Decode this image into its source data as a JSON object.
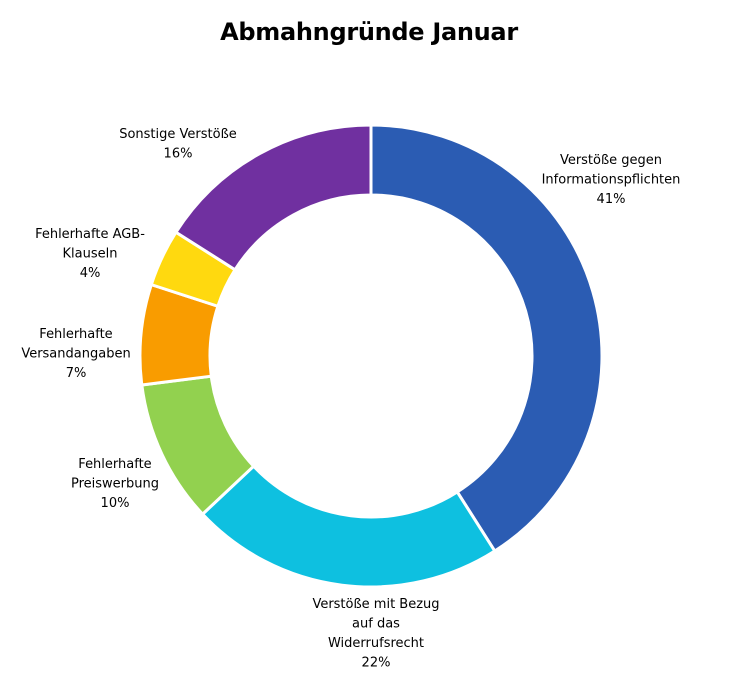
{
  "chart_data": {
    "type": "pie",
    "variant": "donut",
    "title": "Abmahngründe Januar",
    "slices": [
      {
        "lines": [
          "Verstöße gegen",
          "Informationspflichten"
        ],
        "value": 41,
        "value_label": "41%",
        "color": "#2b5cb3"
      },
      {
        "lines": [
          "Verstöße mit Bezug",
          "auf das",
          "Widerrufsrecht"
        ],
        "value": 22,
        "value_label": "22%",
        "color": "#0ec0e0"
      },
      {
        "lines": [
          "Fehlerhafte",
          "Preiswerbung"
        ],
        "value": 10,
        "value_label": "10%",
        "color": "#92d14f"
      },
      {
        "lines": [
          "Fehlerhafte",
          "Versandangaben"
        ],
        "value": 7,
        "value_label": "7%",
        "color": "#f99c00"
      },
      {
        "lines": [
          "Fehlerhafte AGB-",
          "Klauseln"
        ],
        "value": 4,
        "value_label": "4%",
        "color": "#ffd90f"
      },
      {
        "lines": [
          "Sonstige Verstöße"
        ],
        "value": 16,
        "value_label": "16%",
        "color": "#7030a0"
      }
    ]
  }
}
